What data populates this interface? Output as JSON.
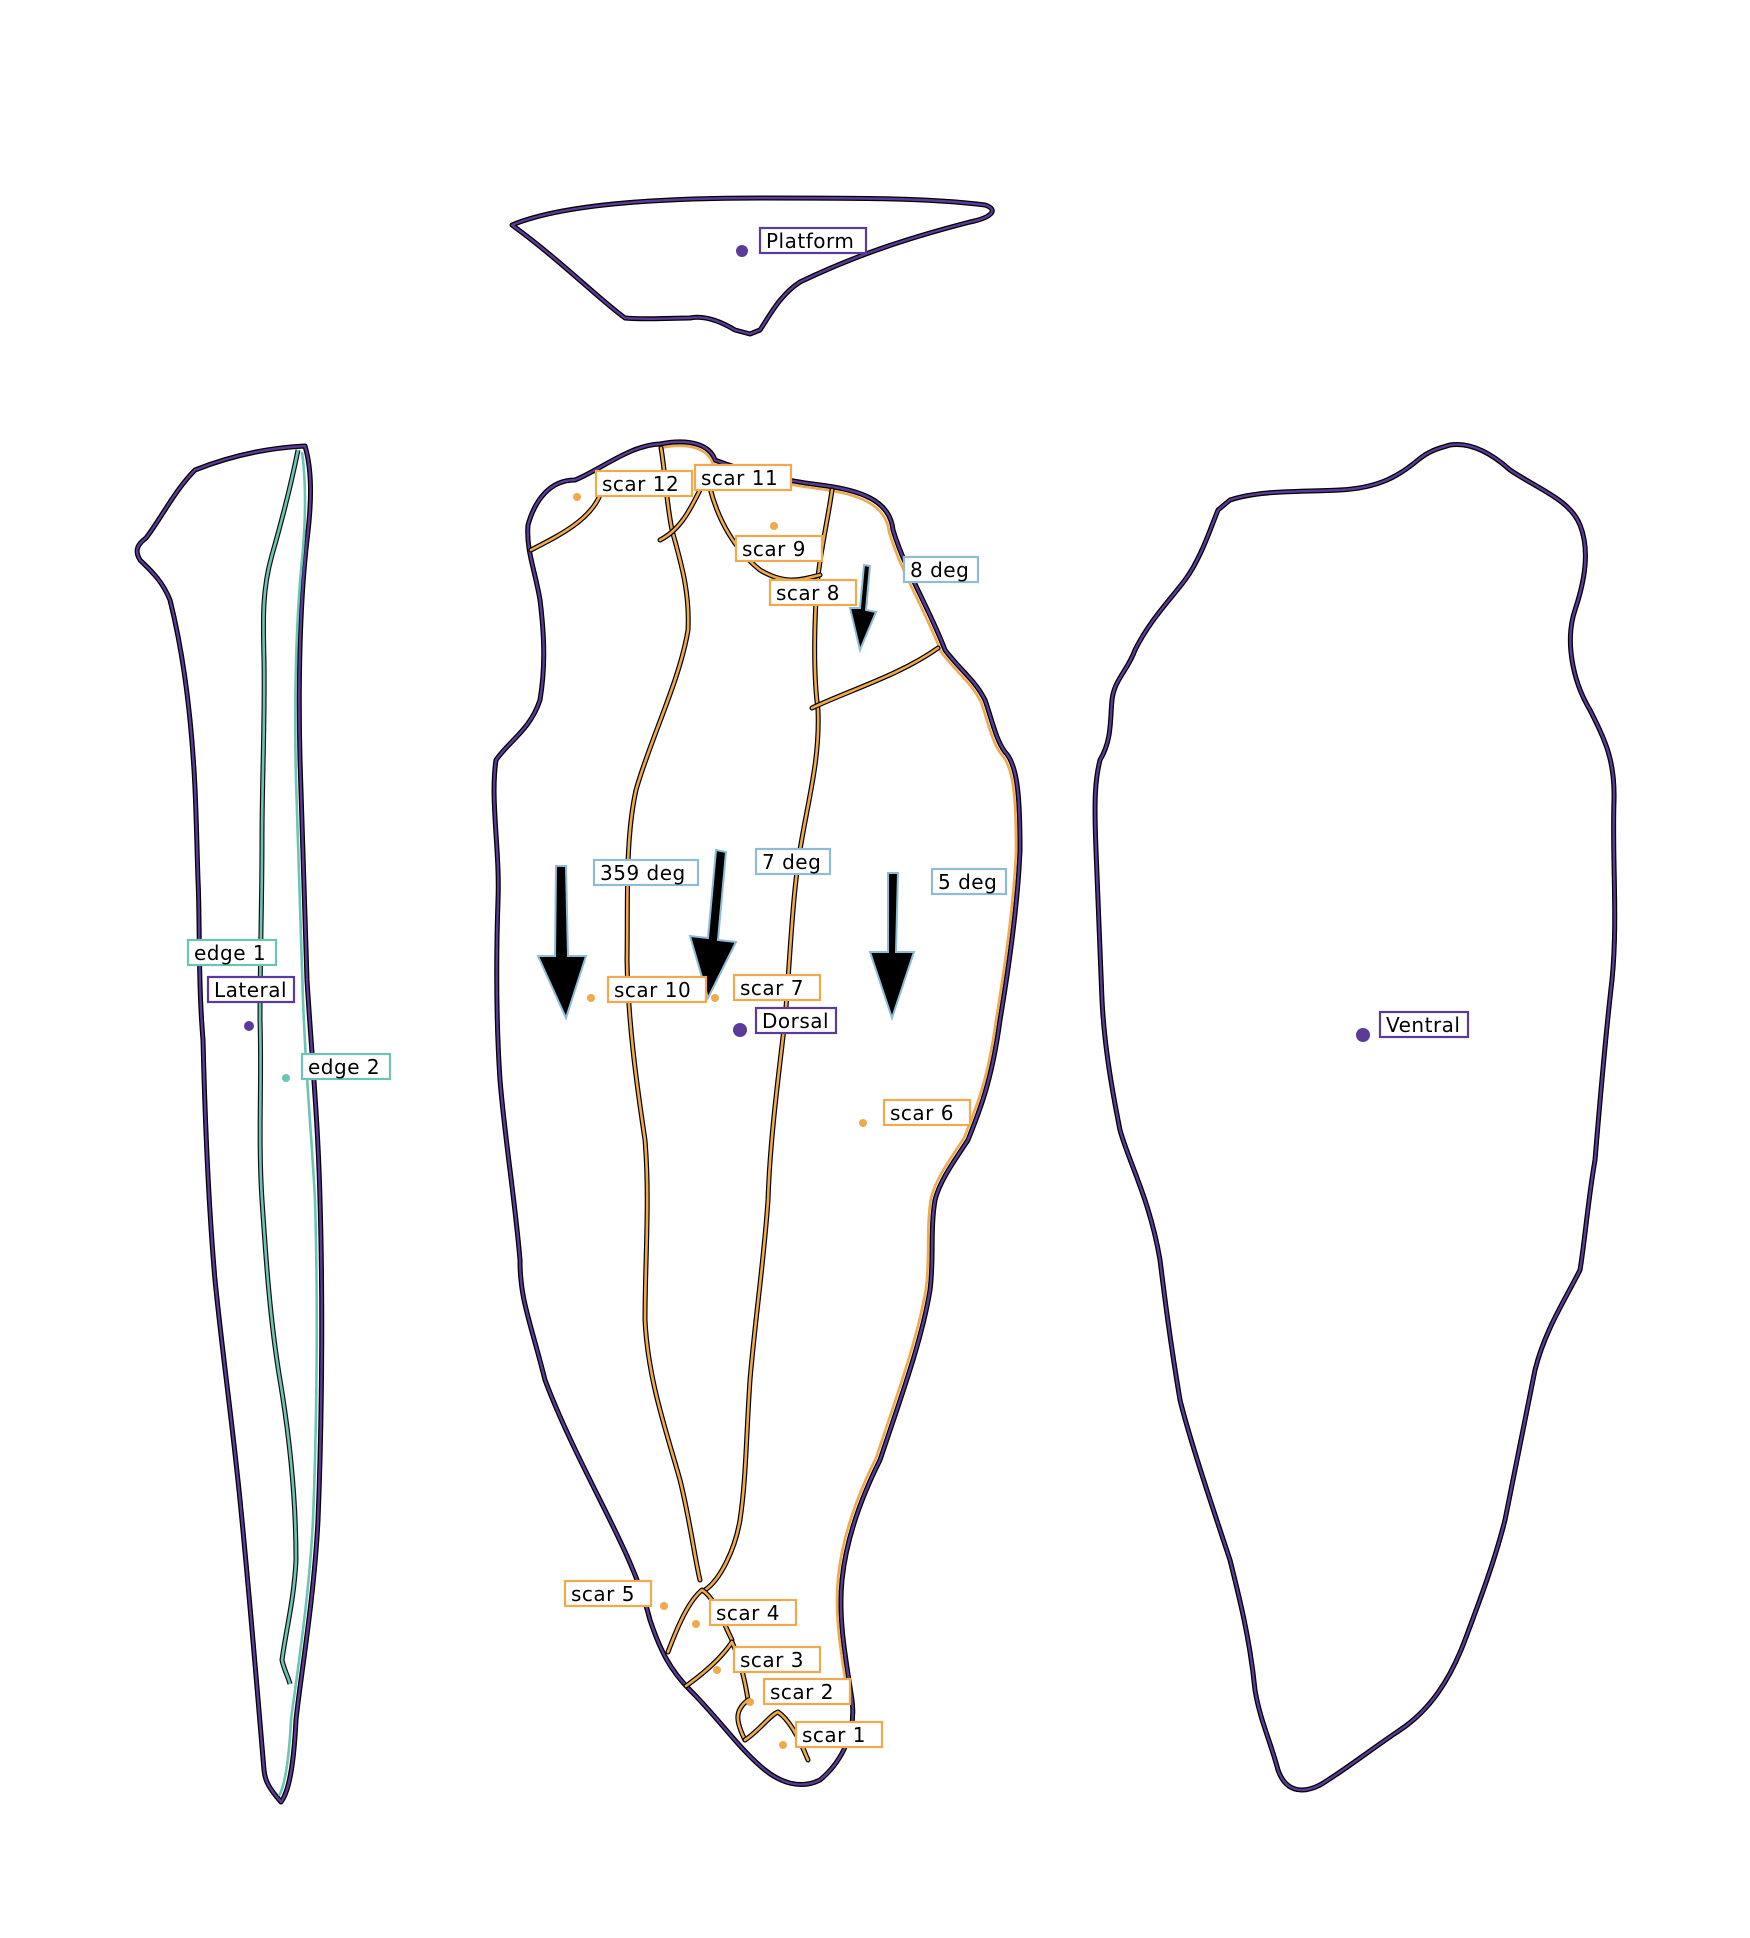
{
  "colors": {
    "view_outline": "#5b3a99",
    "scar": "#f0a94c",
    "edge": "#6cc4b4",
    "direction": "#8fbcd4"
  },
  "views": {
    "platform": "Platform",
    "lateral": "Lateral",
    "dorsal": "Dorsal",
    "ventral": "Ventral"
  },
  "edges": [
    "edge 1",
    "edge 2"
  ],
  "scars": [
    "scar 1",
    "scar 2",
    "scar 3",
    "scar 4",
    "scar 5",
    "scar 6",
    "scar 7",
    "scar 8",
    "scar 9",
    "scar 10",
    "scar 11",
    "scar 12"
  ],
  "flake_directions": [
    {
      "label": "359 deg",
      "angle_deg": 359
    },
    {
      "label": "7 deg",
      "angle_deg": 7
    },
    {
      "label": "5 deg",
      "angle_deg": 5
    },
    {
      "label": "8 deg",
      "angle_deg": 8
    }
  ]
}
